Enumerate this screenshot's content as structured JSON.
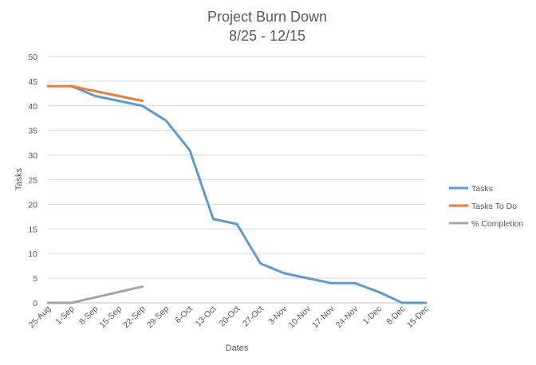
{
  "chart_data": {
    "type": "line",
    "title": "Project Burn Down",
    "subtitle": "8/25 - 12/15",
    "xlabel": "Dates",
    "ylabel": "Tasks",
    "ylim": [
      0,
      50
    ],
    "y_ticks": [
      0,
      5,
      10,
      15,
      20,
      25,
      30,
      35,
      40,
      45,
      50
    ],
    "grid": true,
    "legend_position": "right",
    "categories": [
      "25-Aug",
      "1-Sep",
      "8-Sep",
      "15-Sep",
      "22-Sep",
      "29-Sep",
      "6-Oct",
      "13-Oct",
      "20-Oct",
      "27-Oct",
      "3-Nov",
      "10-Nov",
      "17-Nov",
      "24-Nov",
      "1-Dec",
      "8-Dec",
      "15-Dec"
    ],
    "series": [
      {
        "name": "Tasks",
        "color": "#5b9bd5",
        "values": [
          null,
          44,
          42,
          41,
          40,
          37,
          31,
          17,
          16,
          8,
          6,
          5,
          4,
          4,
          2.2,
          0,
          0
        ]
      },
      {
        "name": "Tasks To Do",
        "color": "#ed7d31",
        "values": [
          44,
          44,
          43,
          42,
          41,
          null,
          null,
          null,
          null,
          null,
          null,
          null,
          null,
          null,
          null,
          null,
          null
        ]
      },
      {
        "name": "% Completion",
        "color": "#a5a5a5",
        "values": [
          0,
          0,
          1.1,
          2.2,
          3.3,
          null,
          null,
          null,
          null,
          null,
          null,
          null,
          null,
          null,
          null,
          null,
          null
        ]
      }
    ]
  }
}
